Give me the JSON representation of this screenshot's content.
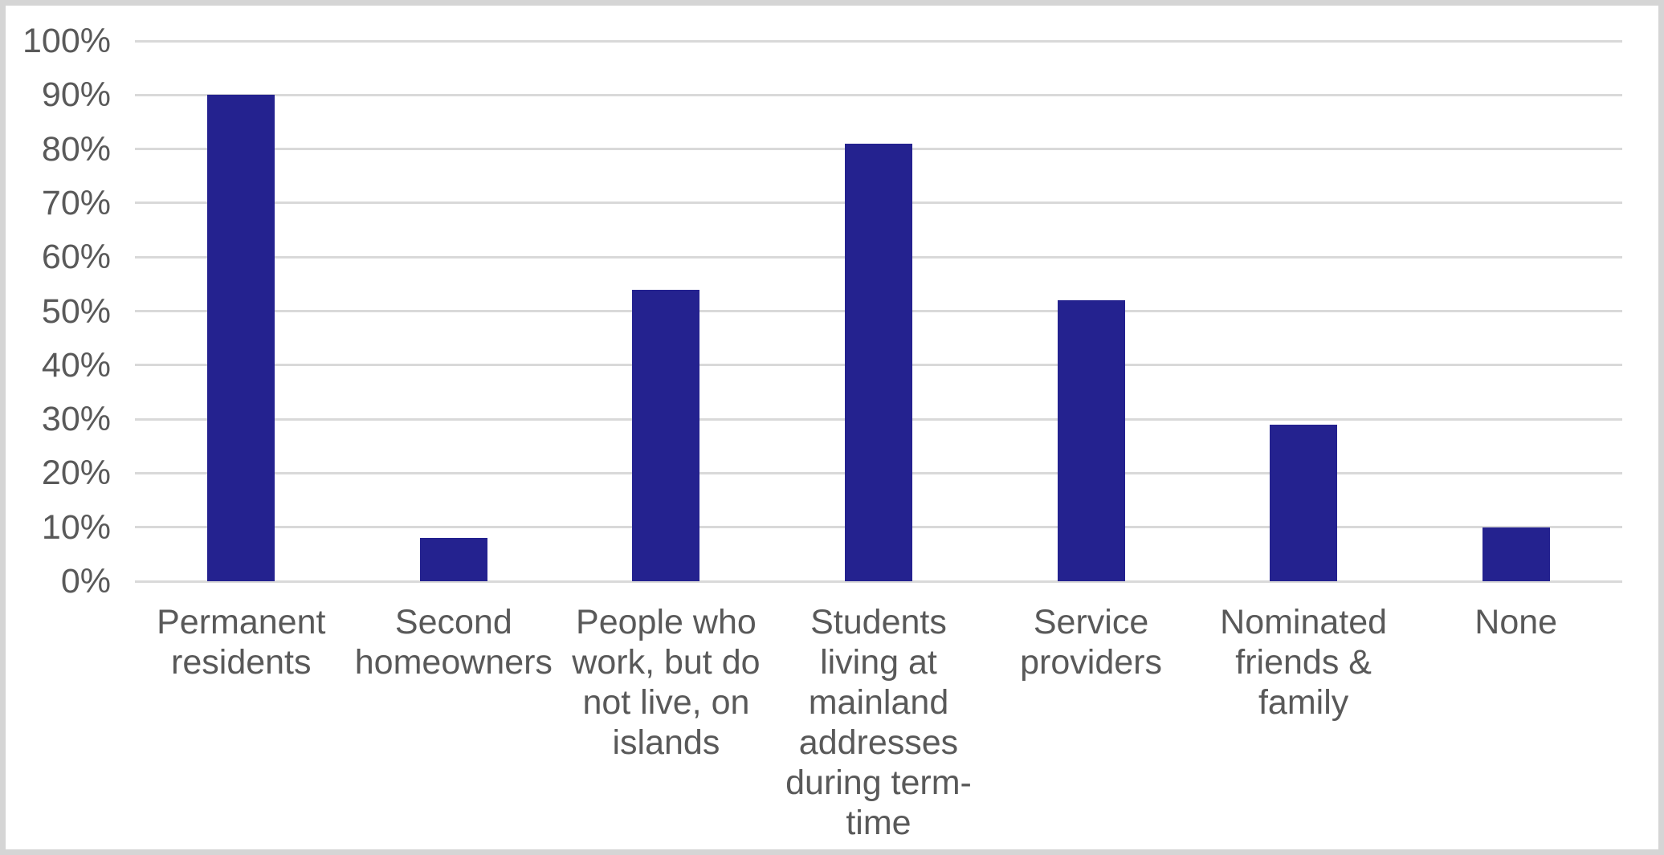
{
  "chart_data": {
    "type": "bar",
    "title": "",
    "xlabel": "",
    "ylabel": "",
    "categories": [
      "Permanent residents",
      "Second homeowners",
      "People who work, but do not live, on islands",
      "Students living at mainland addresses during term-time",
      "Service providers",
      "Nominated friends & family",
      "None"
    ],
    "values": [
      90,
      8,
      54,
      81,
      52,
      29,
      10
    ],
    "value_unit": "%",
    "ylim": [
      0,
      100
    ],
    "ytick_step": 10,
    "ytick_labels": [
      "0%",
      "10%",
      "20%",
      "30%",
      "40%",
      "50%",
      "60%",
      "70%",
      "80%",
      "90%",
      "100%"
    ],
    "grid": true,
    "legend": "none",
    "colors": {
      "bar": "#24228f",
      "gridline": "#d9d9d9",
      "tick_label": "#595959",
      "chart_border": "#d5d5d5",
      "background": "#ffffff"
    }
  }
}
